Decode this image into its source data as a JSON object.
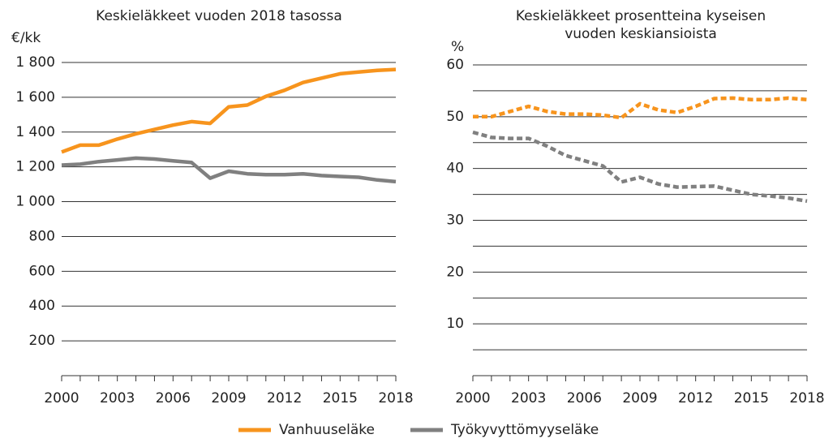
{
  "chart_data": [
    {
      "type": "line",
      "title": "Keskieläkkeet vuoden 2018 tasossa",
      "y_label": "€/kk",
      "x": [
        2000,
        2001,
        2002,
        2003,
        2004,
        2005,
        2006,
        2007,
        2008,
        2009,
        2010,
        2011,
        2012,
        2013,
        2014,
        2015,
        2016,
        2017,
        2018
      ],
      "xlim": [
        2000,
        2018
      ],
      "xticks": [
        2000,
        2003,
        2006,
        2009,
        2012,
        2015,
        2018
      ],
      "ylim": [
        0,
        1800
      ],
      "yticks": [
        200,
        400,
        600,
        800,
        {
          "value": 1000,
          "label": "1 000"
        },
        {
          "value": 1200,
          "label": "1 200"
        },
        {
          "value": 1400,
          "label": "1 400"
        },
        {
          "value": 1600,
          "label": "1 600"
        },
        {
          "value": 1800,
          "label": "1 800"
        }
      ],
      "grid": true,
      "dashed": false,
      "series": [
        {
          "name": "Vanhuuseläke",
          "color": "#f7941d",
          "values": [
            1285,
            1325,
            1325,
            1360,
            1390,
            1415,
            1440,
            1460,
            1450,
            1545,
            1555,
            1605,
            1640,
            1685,
            1710,
            1735,
            1745,
            1755,
            1760
          ]
        },
        {
          "name": "Työkyvyttömyyseläke",
          "color": "#808080",
          "values": [
            1210,
            1215,
            1230,
            1240,
            1250,
            1245,
            1235,
            1225,
            1135,
            1175,
            1160,
            1155,
            1155,
            1160,
            1150,
            1145,
            1140,
            1125,
            1115
          ]
        }
      ]
    },
    {
      "type": "line",
      "title": [
        "Keskieläkkeet prosentteina kyseisen",
        "vuoden keskiansioista"
      ],
      "y_label": "%",
      "x": [
        2000,
        2001,
        2002,
        2003,
        2004,
        2005,
        2006,
        2007,
        2008,
        2009,
        2010,
        2011,
        2012,
        2013,
        2014,
        2015,
        2016,
        2017,
        2018
      ],
      "xlim": [
        2000,
        2018
      ],
      "xticks": [
        2000,
        2003,
        2006,
        2009,
        2012,
        2015,
        2018
      ],
      "ylim": [
        0,
        60
      ],
      "yticks": [
        10,
        20,
        30,
        40,
        50,
        60
      ],
      "minor_yticks": [
        5,
        15,
        25,
        35,
        45,
        55
      ],
      "grid": true,
      "dashed": true,
      "series": [
        {
          "color": "#f7941d",
          "values": [
            50,
            50,
            51,
            52,
            51,
            50.5,
            50.5,
            50.3,
            49.8,
            52.5,
            51.3,
            50.8,
            52,
            53.5,
            53.6,
            53.3,
            53.3,
            53.6,
            53.3
          ]
        },
        {
          "color": "#808080",
          "values": [
            47,
            46,
            45.8,
            45.8,
            44.3,
            42.5,
            41.5,
            40.5,
            37.4,
            38.3,
            37,
            36.4,
            36.5,
            36.6,
            35.8,
            35,
            34.7,
            34.3,
            33.7
          ]
        }
      ]
    }
  ]
}
